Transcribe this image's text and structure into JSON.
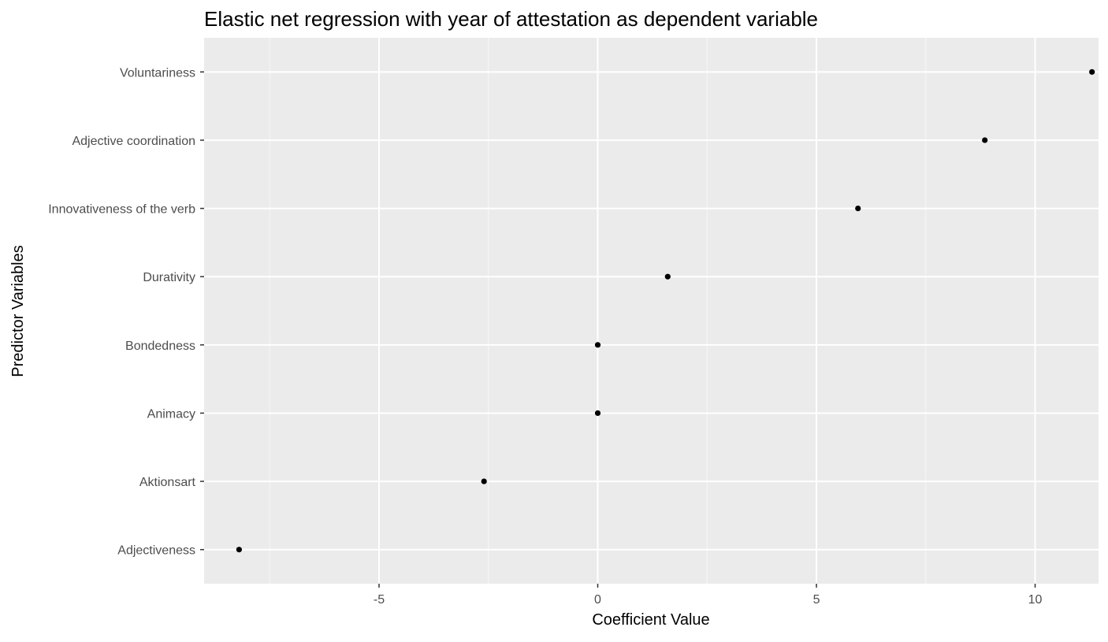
{
  "chart_data": {
    "type": "scatter",
    "title": "Elastic net regression with year of attestation as dependent variable",
    "xlabel": "Coefficient Value",
    "ylabel": "Predictor Variables",
    "xlim": [
      -9.0,
      11.45
    ],
    "x_ticks": [
      -5,
      0,
      5,
      10
    ],
    "x_tick_labels": [
      "-5",
      "0",
      "5",
      "10"
    ],
    "x_minor_ticks": [
      -7.5,
      -2.5,
      2.5,
      7.5
    ],
    "categories": [
      "Voluntariness",
      "Adjective coordination",
      "Innovativeness of the verb",
      "Durativity",
      "Bondedness",
      "Animacy",
      "Aktionsart",
      "Adjectiveness"
    ],
    "values": [
      11.3,
      8.85,
      5.95,
      1.6,
      0.0,
      0.0,
      -2.6,
      -8.2
    ],
    "grid": true,
    "legend": "none",
    "colors": {
      "panel_background": "#ebebeb",
      "grid_major": "#ffffff",
      "grid_minor": "#f7f7f7",
      "point": "#000000",
      "tick_text": "#4d4d4d",
      "tick_mark": "#333333"
    }
  }
}
